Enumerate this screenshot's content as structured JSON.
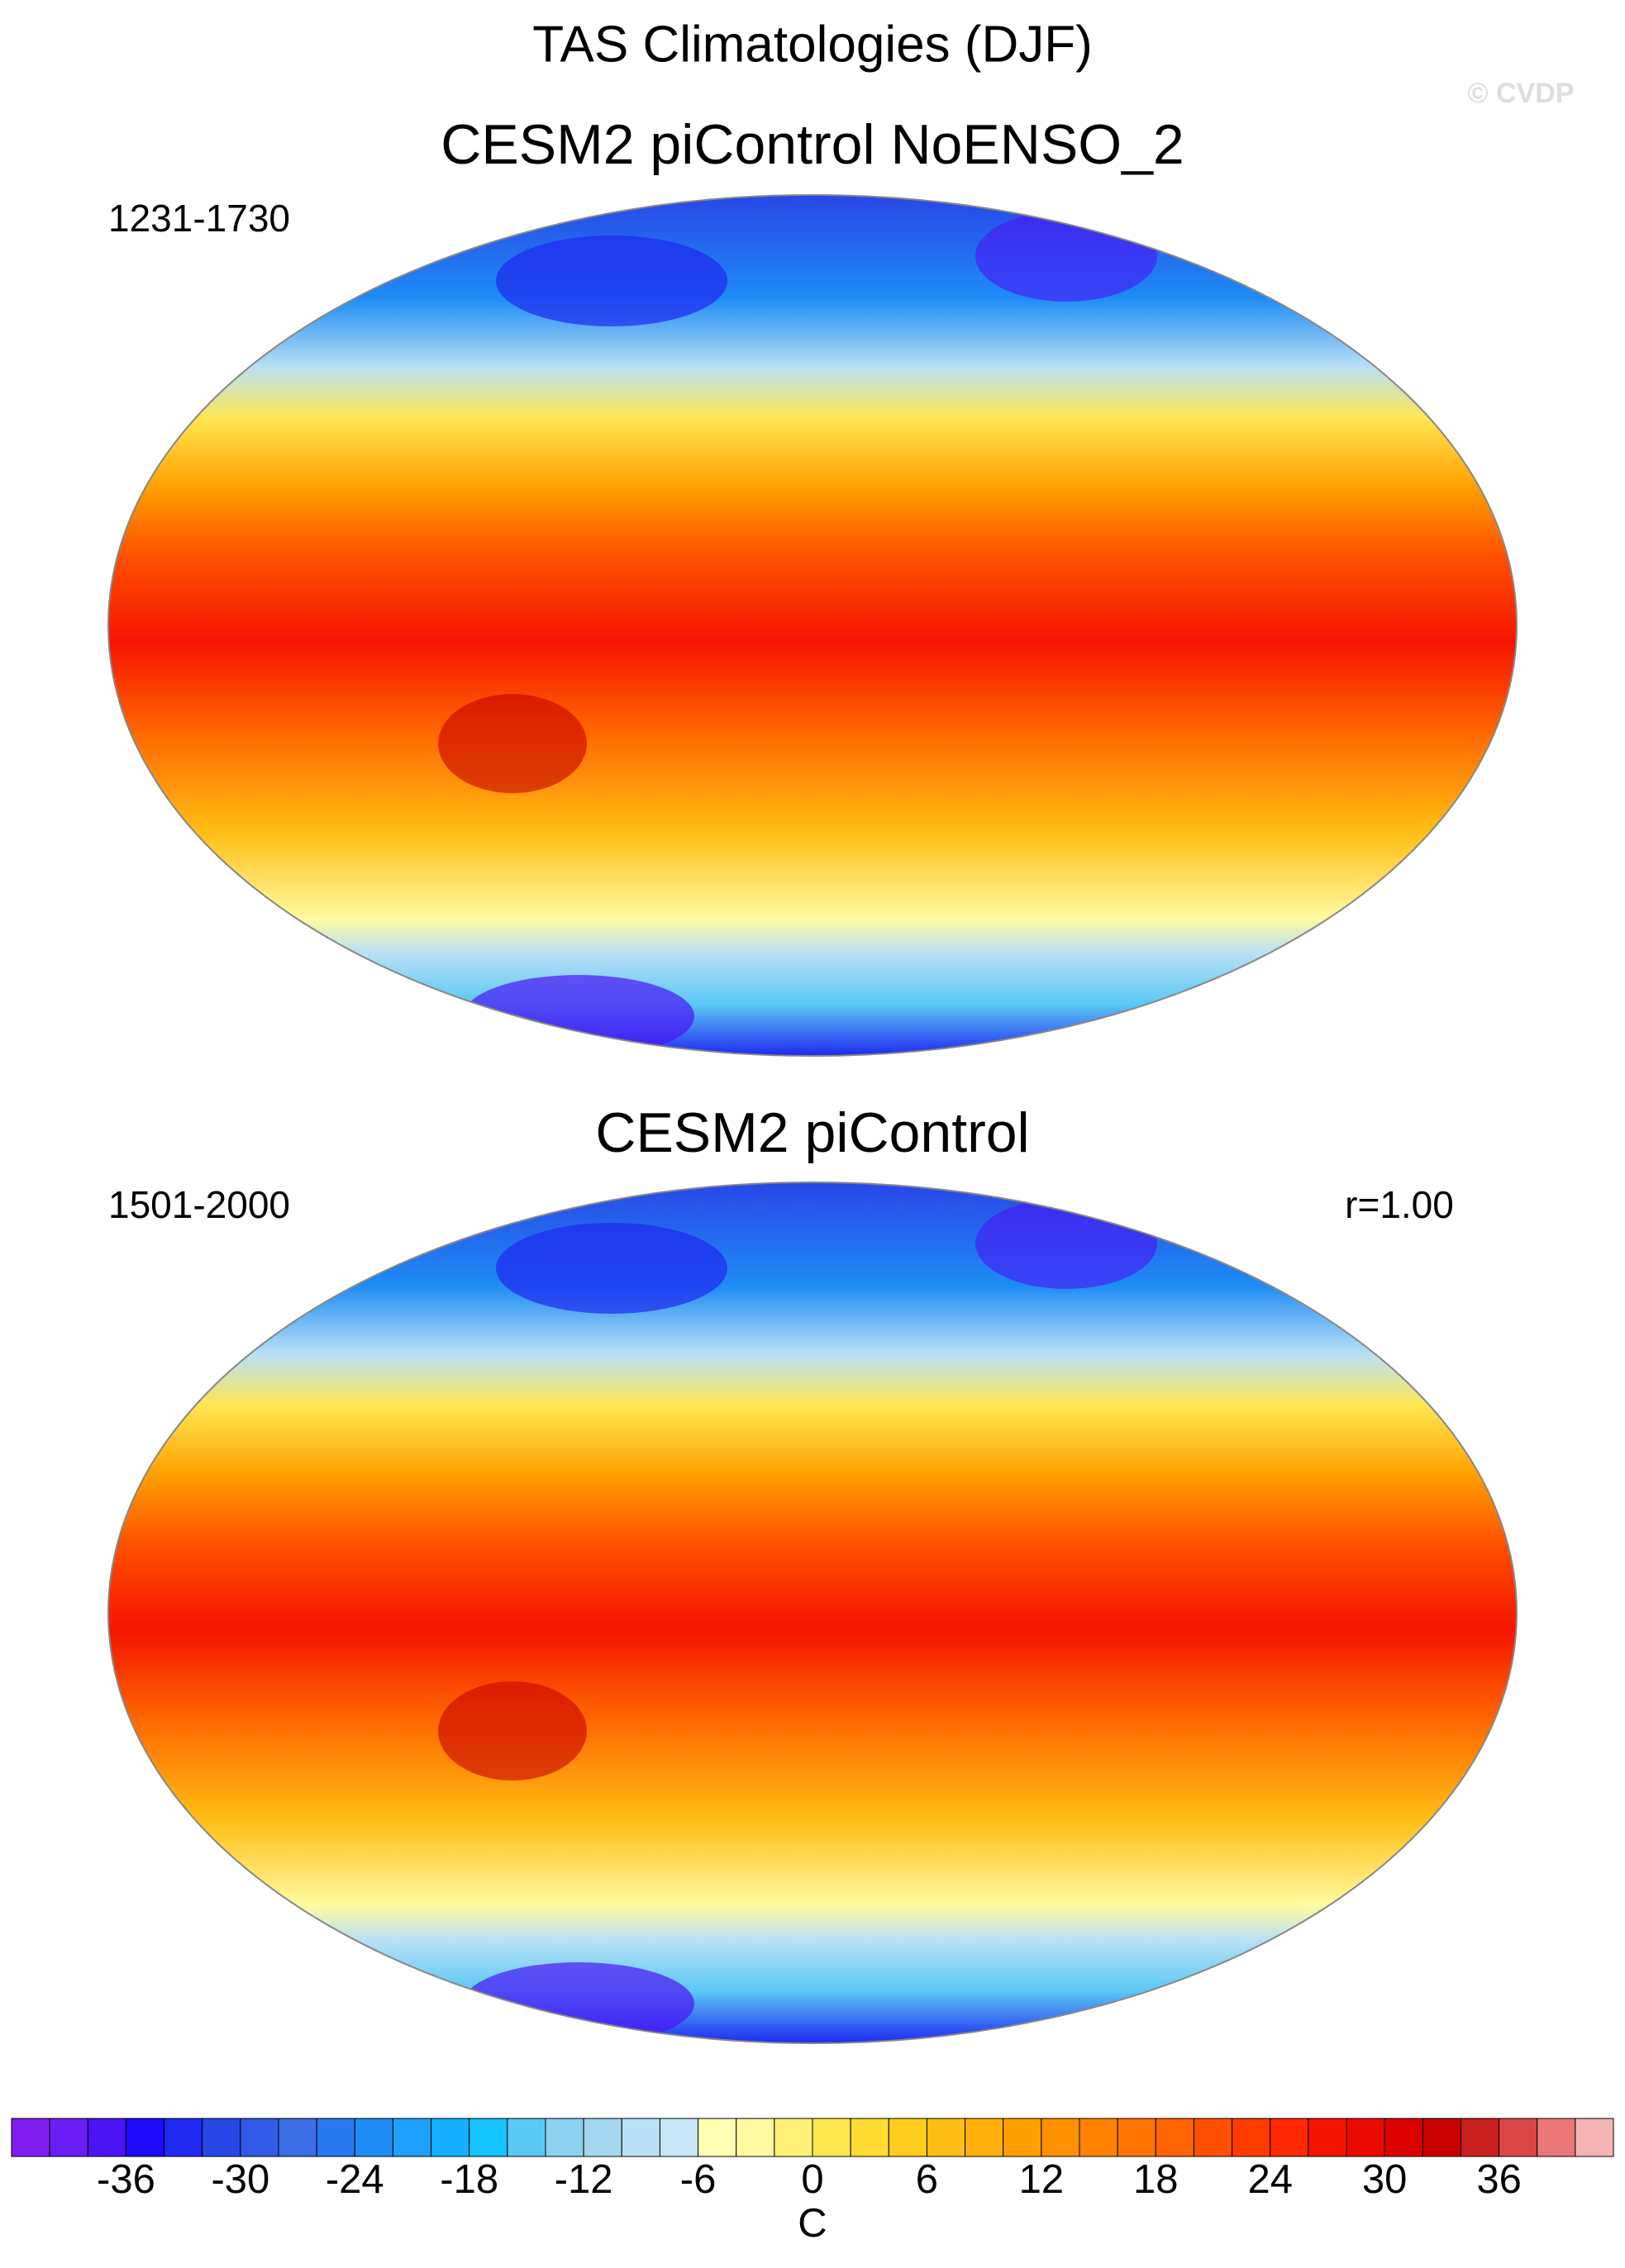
{
  "header": {
    "title": "TAS Climatologies (DJF)",
    "watermark": "© CVDP"
  },
  "panels": [
    {
      "title": "CESM2 piControl NoENSO_2",
      "years": "1231-1730"
    },
    {
      "title": "CESM2 piControl",
      "years": "1501-2000",
      "corr": "r=1.00"
    }
  ],
  "colorbar": {
    "label": "C",
    "lim": [
      -42,
      42
    ],
    "ticks": [
      -36,
      -30,
      -24,
      -18,
      -12,
      -6,
      0,
      6,
      12,
      18,
      24,
      30,
      36
    ],
    "colors": [
      "#7e1ef0",
      "#6a1ef5",
      "#4a14f5",
      "#1e0aff",
      "#1e28f0",
      "#2846e6",
      "#325ae6",
      "#3c6ee6",
      "#2878f0",
      "#1e8cf5",
      "#1ea0ff",
      "#14afff",
      "#14c3ff",
      "#5ac8f5",
      "#8cd2f0",
      "#a5d7f0",
      "#b9e1f5",
      "#c8e6f5",
      "#ffffb4",
      "#fffaa0",
      "#fff078",
      "#ffe650",
      "#ffdc32",
      "#ffcd1e",
      "#ffbe14",
      "#ffaf0a",
      "#ffa000",
      "#ff9100",
      "#ff8200",
      "#ff7300",
      "#ff6400",
      "#ff5000",
      "#ff3c00",
      "#ff2800",
      "#f51400",
      "#eb0a00",
      "#dc0000",
      "#c80000",
      "#c81e1e",
      "#dc4646",
      "#eb7878",
      "#f5b4b4"
    ]
  }
}
